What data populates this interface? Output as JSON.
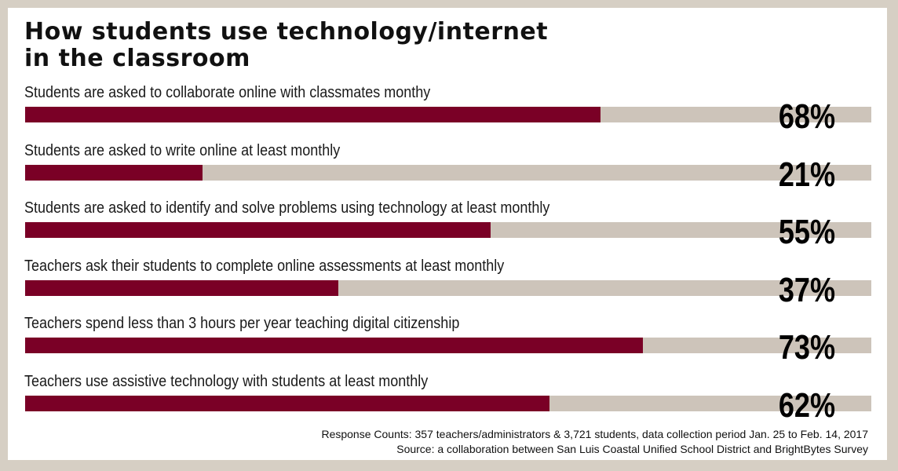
{
  "title": {
    "line1": "How students use technology/internet",
    "line2": "in the classroom"
  },
  "chart_data": {
    "type": "bar",
    "orientation": "horizontal",
    "unit": "%",
    "xlim": [
      0,
      100
    ],
    "grid": false,
    "categories": [
      "Students are asked to collaborate online with classmates monthy",
      "Students are asked to write online at least monthly",
      "Students are asked to identify and solve problems using technology at least monthly",
      "Teachers ask their students to complete online assessments at least monthly",
      "Teachers spend less than 3 hours per year teaching digital citizenship",
      "Teachers use assistive technology with students at least monthly"
    ],
    "values": [
      68,
      21,
      55,
      37,
      73,
      62
    ],
    "value_labels": [
      "68%",
      "21%",
      "55%",
      "37%",
      "73%",
      "62%"
    ],
    "colors": {
      "bar": "#7a0026",
      "track": "#cdc4ba"
    }
  },
  "footer": {
    "line1": "Response Counts: 357 teachers/administrators & 3,721 students, data collection period Jan. 25 to Feb. 14, 2017",
    "line2": "Source: a collaboration between San Luis Coastal Unified School District and BrightBytes Survey"
  }
}
